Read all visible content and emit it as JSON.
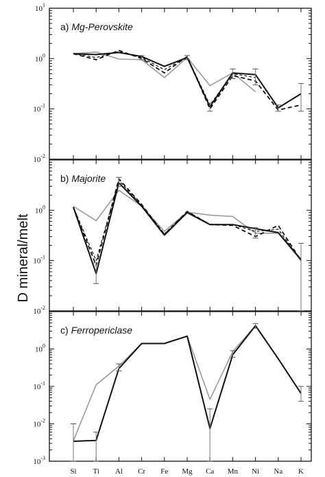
{
  "chart_data": {
    "type": "line",
    "y_label": "D mineral/melt",
    "x_tick_labels": [
      "Si",
      "Ti",
      "Al",
      "Cr",
      "Fe",
      "Mg",
      "Ca",
      "Mn",
      "Ni",
      "Na",
      "K"
    ],
    "panels": [
      {
        "id": "perovskite",
        "label": "a)",
        "title": "Mg-Perovskite",
        "y_scale": "log",
        "ylim": [
          0.01,
          10
        ],
        "y_ticks": [
          {
            "v": 10,
            "b": "10",
            "e": "1"
          },
          {
            "v": 1,
            "b": "10",
            "e": "0"
          },
          {
            "v": 0.1,
            "b": "10",
            "e": "-1"
          },
          {
            "v": 0.01,
            "b": "10",
            "e": "-2"
          }
        ],
        "series": [
          {
            "style": "gray",
            "x": [
              "Si",
              "Ti",
              "Al",
              "Cr",
              "Fe",
              "Mg",
              "Ca",
              "Mn",
              "Ni"
            ],
            "values": [
              1.25,
              1.35,
              0.98,
              0.95,
              0.42,
              1.05,
              0.29,
              0.52,
              0.22
            ]
          },
          {
            "style": "dashed",
            "x": [
              "Si",
              "Ti",
              "Al",
              "Cr",
              "Fe",
              "Mg",
              "Ca",
              "Mn",
              "Ni",
              "Na",
              "K"
            ],
            "values": [
              1.25,
              0.95,
              1.45,
              1.0,
              0.52,
              1.1,
              0.1,
              0.46,
              0.36,
              0.095,
              0.12
            ]
          },
          {
            "style": "dashed-thin",
            "x": [
              "Si",
              "Ti",
              "Al",
              "Cr",
              "Fe",
              "Mg",
              "Ca",
              "Mn",
              "Ni"
            ],
            "values": [
              1.25,
              1.05,
              1.38,
              1.05,
              0.6,
              1.08,
              0.12,
              0.5,
              0.42
            ]
          },
          {
            "style": "solid",
            "x": [
              "Si",
              "Ti",
              "Al",
              "Cr",
              "Fe",
              "Mg",
              "Ca",
              "Mn",
              "Ni",
              "Na",
              "K"
            ],
            "values": [
              1.25,
              1.2,
              1.32,
              1.1,
              0.7,
              1.05,
              0.11,
              0.52,
              0.48,
              0.105,
              0.2
            ]
          }
        ],
        "error_bars": [
          {
            "x": "Ca",
            "low": 0.09,
            "high": 0.13
          },
          {
            "x": "Mn",
            "low": 0.4,
            "high": 0.62
          },
          {
            "x": "Ni",
            "low": 0.3,
            "high": 0.62
          },
          {
            "x": "Na",
            "low": 0.09,
            "high": 0.12
          },
          {
            "x": "K",
            "low": 0.09,
            "high": 0.32
          },
          {
            "x": "Mg",
            "low": 0.95,
            "high": 1.15
          },
          {
            "x": "Cr",
            "low": 0.95,
            "high": 1.15
          }
        ]
      },
      {
        "id": "majorite",
        "label": "b)",
        "title": "Majorite",
        "y_scale": "log",
        "ylim": [
          0.01,
          10
        ],
        "y_ticks": [
          {
            "v": 1,
            "b": "10",
            "e": "0"
          },
          {
            "v": 0.1,
            "b": "10",
            "e": "-1"
          },
          {
            "v": 0.01,
            "b": "10",
            "e": "-2"
          }
        ],
        "series": [
          {
            "style": "gray",
            "x": [
              "Si",
              "Ti",
              "Al",
              "Cr",
              "Fe",
              "Mg",
              "Ca",
              "Mn",
              "Ni",
              "Na",
              "K"
            ],
            "values": [
              1.2,
              0.62,
              2.5,
              1.2,
              0.38,
              0.92,
              0.8,
              0.75,
              0.35,
              0.35,
              0.1
            ]
          },
          {
            "style": "dashed",
            "x": [
              "Si",
              "Ti",
              "Al",
              "Cr",
              "Fe",
              "Mg",
              "Ca",
              "Mn",
              "Ni",
              "Na",
              "K"
            ],
            "values": [
              1.15,
              0.08,
              4.2,
              1.3,
              0.33,
              0.95,
              0.52,
              0.5,
              0.3,
              0.5,
              0.1
            ]
          },
          {
            "style": "dashed-thin",
            "x": [
              "Si",
              "Ti",
              "Al",
              "Cr",
              "Fe",
              "Mg",
              "Ca",
              "Mn",
              "Ni",
              "Na",
              "K"
            ],
            "values": [
              1.15,
              0.1,
              3.9,
              1.25,
              0.34,
              0.93,
              0.53,
              0.52,
              0.38,
              0.42,
              0.1
            ]
          },
          {
            "style": "solid",
            "x": [
              "Si",
              "Ti",
              "Al",
              "Cr",
              "Fe",
              "Mg",
              "Ca",
              "Mn",
              "Ni",
              "Na",
              "K"
            ],
            "values": [
              1.15,
              0.055,
              3.5,
              1.2,
              0.32,
              0.9,
              0.52,
              0.52,
              0.43,
              0.36,
              0.105
            ]
          }
        ],
        "error_bars": [
          {
            "x": "Ti",
            "low": 0.035,
            "high": 0.09
          },
          {
            "x": "Al",
            "low": 3.0,
            "high": 4.5
          },
          {
            "x": "Ni",
            "low": 0.28,
            "high": 0.45
          },
          {
            "x": "K",
            "low": 0.01,
            "high": 0.22
          }
        ]
      },
      {
        "id": "ferropericlase",
        "label": "c)",
        "title": "Ferropericlase",
        "y_scale": "log",
        "ylim": [
          0.001,
          10
        ],
        "y_ticks": [
          {
            "v": 1,
            "b": "10",
            "e": "0"
          },
          {
            "v": 0.1,
            "b": "10",
            "e": "-1"
          },
          {
            "v": 0.01,
            "b": "10",
            "e": "-2"
          },
          {
            "v": 0.001,
            "b": "10",
            "e": "-3"
          }
        ],
        "series": [
          {
            "style": "gray",
            "x": [
              "Si",
              "Ti",
              "Al",
              "Cr",
              "Fe",
              "Mg",
              "Ca",
              "Mn",
              "Ni",
              "Na",
              "K"
            ],
            "values": [
              0.0035,
              0.11,
              0.35,
              1.4,
              1.4,
              2.2,
              0.045,
              0.85,
              4.2,
              0.55,
              0.065
            ]
          },
          {
            "style": "solid",
            "x": [
              "Si",
              "Ti",
              "Al",
              "Cr",
              "Fe",
              "Mg",
              "Ca",
              "Mn",
              "Ni",
              "Na",
              "K"
            ],
            "values": [
              0.0034,
              0.0036,
              0.3,
              1.4,
              1.4,
              2.2,
              0.0075,
              0.7,
              4.2,
              0.55,
              0.065
            ]
          }
        ],
        "error_bars": [
          {
            "x": "Si",
            "low": 0.001,
            "high": 0.01
          },
          {
            "x": "Ti",
            "low": 0.001,
            "high": 0.006
          },
          {
            "x": "Al",
            "low": 0.26,
            "high": 0.4
          },
          {
            "x": "Ca",
            "low": 0.001,
            "high": 0.025
          },
          {
            "x": "Mn",
            "low": 0.6,
            "high": 0.9
          },
          {
            "x": "Ni",
            "low": 3.6,
            "high": 4.8
          },
          {
            "x": "K",
            "low": 0.04,
            "high": 0.1
          }
        ]
      }
    ],
    "colors": {
      "black": "#111111",
      "gray": "#9a9a9a"
    }
  }
}
